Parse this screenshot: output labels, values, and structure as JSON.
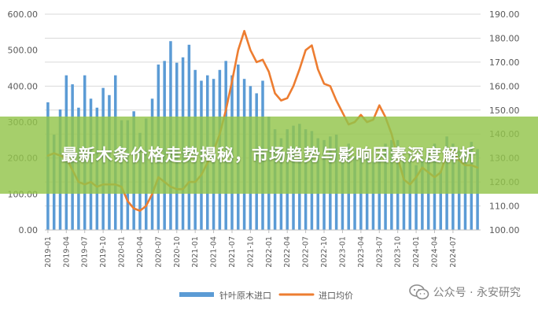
{
  "banner": {
    "title": "最新木条价格走势揭秘，市场趋势与影响因素深度解析"
  },
  "watermark": {
    "text": "公众号 · 永安研究",
    "icon": "wechat-icon"
  },
  "chart_data": {
    "type": "bar+line",
    "title": "",
    "y_left": {
      "ticks": [
        "0.00",
        "100.00",
        "200.00",
        "300.00",
        "400.00",
        "500.00",
        "600.00"
      ],
      "range": [
        0,
        600
      ]
    },
    "y_right": {
      "ticks": [
        "100.00",
        "110.00",
        "120.00",
        "130.00",
        "140.00",
        "150.00",
        "160.00",
        "170.00",
        "180.00",
        "190.00"
      ],
      "range": [
        100,
        190
      ]
    },
    "x_ticks": [
      "2019-01",
      "2019-04",
      "2019-07",
      "2019-10",
      "2020-01",
      "2020-04",
      "2020-07",
      "2020-10",
      "2021-01",
      "2021-04",
      "2021-07",
      "2021-10",
      "2022-01",
      "2022-04",
      "2022-07",
      "2022-10",
      "2023-01",
      "2023-04",
      "2023-07",
      "2023-10",
      "2024-01",
      "2024-04",
      "2024-07"
    ],
    "grid": "horizontal",
    "legend_position": "bottom",
    "colors": {
      "bar": "#5b9bd5",
      "line": "#ed7d31",
      "banner": "#92c44a"
    },
    "series": [
      {
        "name": "针叶原木进口",
        "type": "bar",
        "axis": "left",
        "values": [
          355,
          265,
          335,
          430,
          405,
          340,
          430,
          365,
          340,
          395,
          375,
          430,
          305,
          305,
          330,
          270,
          310,
          365,
          460,
          470,
          525,
          465,
          480,
          515,
          445,
          415,
          430,
          420,
          445,
          470,
          430,
          460,
          420,
          400,
          380,
          415,
          315,
          280,
          255,
          280,
          290,
          295,
          280,
          275,
          255,
          250,
          260,
          265,
          230,
          240,
          205,
          200,
          215,
          190,
          210,
          240,
          250,
          250,
          195,
          210,
          180,
          200,
          215,
          240,
          165,
          260,
          240,
          220,
          215,
          245,
          225
        ]
      },
      {
        "name": "进口均价",
        "type": "line",
        "axis": "right",
        "values": [
          131,
          132,
          131,
          130,
          125,
          120,
          119,
          120,
          118,
          119,
          119,
          119,
          118,
          112,
          109,
          108,
          110,
          115,
          122,
          120,
          118,
          117,
          117,
          120,
          120,
          123,
          128,
          133,
          140,
          150,
          162,
          175,
          183,
          175,
          170,
          171,
          166,
          157,
          154,
          155,
          160,
          167,
          175,
          177,
          167,
          161,
          160,
          154,
          149,
          144,
          145,
          148,
          145,
          146,
          152,
          147,
          140,
          130,
          121,
          119,
          122,
          126,
          124,
          122,
          124,
          132,
          133,
          129,
          127,
          127,
          126
        ]
      }
    ]
  }
}
